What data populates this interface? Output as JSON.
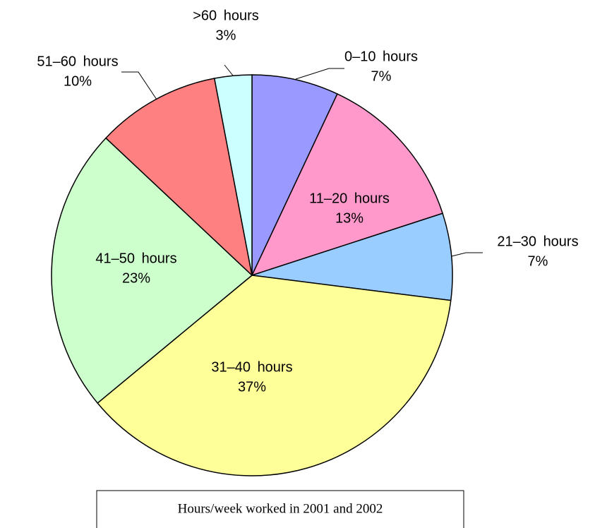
{
  "chart_data": {
    "type": "pie",
    "title": "Hours/week worked in 2001 and 2002",
    "categories": [
      "0–10 hours",
      "11–20 hours",
      "21–30 hours",
      "31–40 hours",
      "41–50 hours",
      "51–60 hours",
      ">60 hours"
    ],
    "values": [
      7,
      13,
      7,
      37,
      23,
      10,
      3
    ],
    "value_labels": [
      "7%",
      "13%",
      "7%",
      "37%",
      "23%",
      "10%",
      "3%"
    ],
    "colors": [
      "#9999ff",
      "#ff99cc",
      "#99ccff",
      "#ffff99",
      "#ccffcc",
      "#ff8080",
      "#ccffff"
    ]
  }
}
